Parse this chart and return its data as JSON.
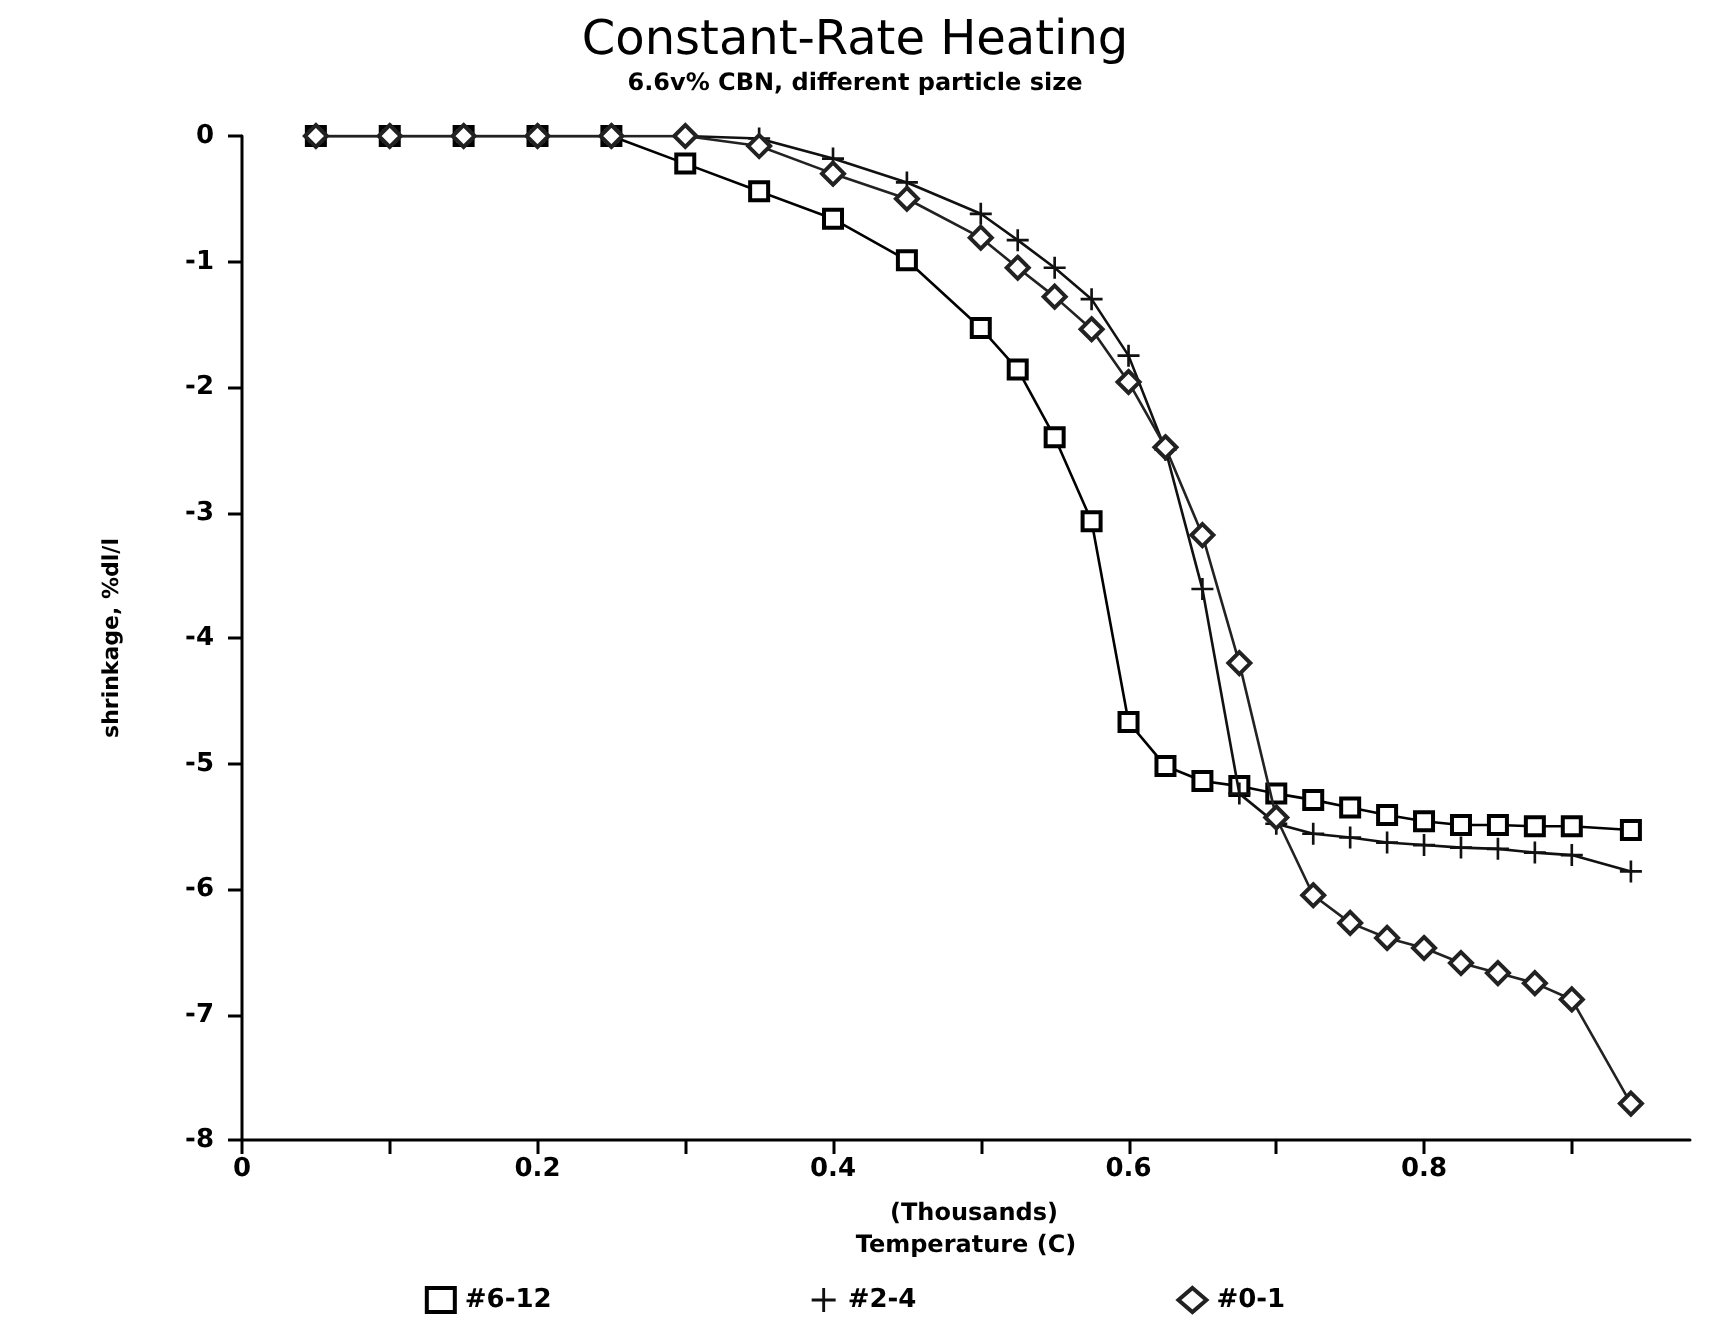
{
  "chart_data": {
    "type": "line",
    "title": "Constant-Rate Heating",
    "subtitle": "6.6v% CBN, different particle size",
    "xlabel": "Temperature (C)",
    "ylabel": "shrinkage, %dl/l",
    "annotations": [
      "(Thousands)"
    ],
    "xlim": [
      0,
      0.98
    ],
    "xticks": [
      0,
      {
        "value": 0.1,
        "label": null
      },
      0.2,
      {
        "value": 0.3,
        "label": null
      },
      0.4,
      {
        "value": 0.5,
        "label": null
      },
      0.6,
      {
        "value": 0.7,
        "label": null
      },
      0.8,
      {
        "value": 0.9,
        "label": null
      }
    ],
    "ylim": [
      -8,
      0
    ],
    "yticks": [
      -8,
      -7,
      -6,
      -5,
      -4,
      -3,
      -2,
      -1,
      0
    ],
    "grid": false,
    "legend": "bottom",
    "series": [
      {
        "name": "#6-12",
        "color": "#000000",
        "marker": "square",
        "x": [
          0.05,
          0.1,
          0.15,
          0.2,
          0.25,
          0.3,
          0.35,
          0.4,
          0.45,
          0.5,
          0.525,
          0.55,
          0.575,
          0.6,
          0.625,
          0.65,
          0.675,
          0.7,
          0.725,
          0.75,
          0.775,
          0.8,
          0.825,
          0.85,
          0.875,
          0.9,
          0.94
        ],
        "values": [
          0,
          0,
          0,
          0,
          0,
          -0.22,
          -0.44,
          -0.66,
          -0.99,
          -1.53,
          -1.86,
          -2.4,
          -3.07,
          -4.67,
          -5.02,
          -5.14,
          -5.18,
          -5.24,
          -5.29,
          -5.35,
          -5.41,
          -5.46,
          -5.49,
          -5.49,
          -5.5,
          -5.5,
          -5.53
        ]
      },
      {
        "name": "#2-4",
        "color": "#111111",
        "marker": "cross",
        "x": [
          0.05,
          0.1,
          0.15,
          0.2,
          0.25,
          0.3,
          0.35,
          0.4,
          0.45,
          0.5,
          0.525,
          0.55,
          0.575,
          0.6,
          0.625,
          0.65,
          0.675,
          0.7,
          0.725,
          0.75,
          0.775,
          0.8,
          0.825,
          0.85,
          0.875,
          0.9,
          0.94
        ],
        "values": [
          0,
          0,
          0,
          0,
          0,
          0,
          -0.02,
          -0.18,
          -0.37,
          -0.62,
          -0.83,
          -1.05,
          -1.3,
          -1.75,
          -2.5,
          -3.61,
          -5.24,
          -5.48,
          -5.56,
          -5.59,
          -5.63,
          -5.65,
          -5.67,
          -5.68,
          -5.71,
          -5.73,
          -5.86
        ]
      },
      {
        "name": "#0-1",
        "color": "#222222",
        "marker": "diamond",
        "x": [
          0.05,
          0.1,
          0.15,
          0.2,
          0.25,
          0.3,
          0.35,
          0.4,
          0.45,
          0.5,
          0.525,
          0.55,
          0.575,
          0.6,
          0.625,
          0.65,
          0.675,
          0.7,
          0.725,
          0.75,
          0.775,
          0.8,
          0.825,
          0.85,
          0.875,
          0.9,
          0.94
        ],
        "values": [
          0,
          0,
          0,
          0,
          0,
          0,
          -0.08,
          -0.3,
          -0.5,
          -0.81,
          -1.05,
          -1.28,
          -1.54,
          -1.96,
          -2.48,
          -3.18,
          -4.2,
          -5.43,
          -6.05,
          -6.27,
          -6.39,
          -6.47,
          -6.59,
          -6.67,
          -6.75,
          -6.88,
          -7.71
        ]
      }
    ]
  }
}
